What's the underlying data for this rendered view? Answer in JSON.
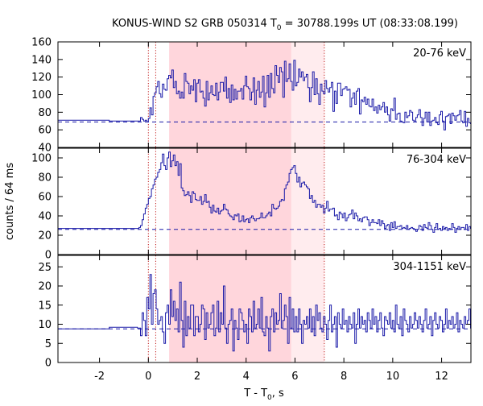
{
  "chart_data": {
    "type": "line",
    "title": {
      "prefix": "KONUS-WIND S2 GRB 050314 T",
      "sub": "0",
      "suffix": " = 30788.199s UT (08:33:08.199)"
    },
    "xlabel": {
      "prefix": "T - T",
      "sub": "0",
      "suffix": ", s"
    },
    "ylabel": "counts / 64 ms",
    "xlim": [
      -3.7,
      13.2
    ],
    "x_ticks": [
      -2,
      0,
      2,
      4,
      6,
      8,
      10,
      12
    ],
    "x_tick_labels": [
      "-2",
      "0",
      "2",
      "4",
      "6",
      "8",
      "10",
      "12"
    ],
    "colors": {
      "series": "#1a1aa8",
      "background_line": "#1a1aa8",
      "shade_main": "#ffd6dc",
      "shade_extension": "#ffecee",
      "marker_lines": "#c01818",
      "frame": "#000000"
    },
    "intervals": {
      "main_shade": [
        0.85,
        5.85
      ],
      "extended_shade": [
        5.85,
        7.2
      ],
      "dotted_markers": [
        0.0,
        0.3,
        7.2
      ]
    },
    "panels": [
      {
        "name": "20-76 keV",
        "ylim": [
          40,
          160
        ],
        "y_ticks": [
          40,
          60,
          80,
          100,
          120,
          140,
          160
        ],
        "y_tick_labels": [
          "40",
          "60",
          "80",
          "100",
          "120",
          "140",
          "160"
        ],
        "background": 69,
        "pre_trigger_levels": [
          [
            -3.7,
            71
          ],
          [
            -1.6,
            70
          ]
        ],
        "series": {
          "t_start": -0.45,
          "dt": 0.064,
          "values": [
            70,
            70,
            74,
            72,
            70,
            71,
            69,
            73,
            85,
            77,
            98,
            102,
            109,
            115,
            101,
            97,
            112,
            106,
            105,
            118,
            122,
            119,
            128,
            108,
            115,
            101,
            104,
            96,
            103,
            96,
            124,
            115,
            113,
            101,
            110,
            105,
            117,
            92,
            113,
            117,
            103,
            104,
            96,
            87,
            115,
            94,
            102,
            110,
            100,
            99,
            113,
            94,
            103,
            114,
            114,
            104,
            120,
            96,
            107,
            91,
            111,
            94,
            106,
            95,
            104,
            104,
            107,
            95,
            110,
            121,
            109,
            107,
            94,
            103,
            119,
            89,
            105,
            115,
            97,
            103,
            121,
            86,
            102,
            122,
            97,
            124,
            107,
            102,
            133,
            122,
            114,
            131,
            126,
            97,
            138,
            115,
            118,
            135,
            115,
            105,
            139,
            110,
            114,
            129,
            120,
            126,
            116,
            120,
            123,
            108,
            92,
            108,
            126,
            100,
            118,
            101,
            89,
            112,
            104,
            101,
            116,
            107,
            103,
            108,
            114,
            81,
            104,
            90,
            113,
            113,
            99,
            106,
            107,
            109,
            105,
            106,
            86,
            96,
            102,
            89,
            104,
            107,
            78,
            94,
            92,
            97,
            89,
            95,
            87,
            86,
            95,
            82,
            86,
            79,
            88,
            83,
            86,
            91,
            80,
            86,
            77,
            70,
            84,
            82,
            96,
            72,
            78,
            79,
            70,
            69,
            68,
            80,
            74,
            76,
            82,
            80,
            71,
            69,
            74,
            77,
            83,
            74,
            65,
            73,
            80,
            69,
            80,
            65,
            70,
            71,
            74,
            68,
            66,
            77,
            81,
            70,
            60,
            75,
            76,
            78,
            67,
            79,
            76,
            71,
            76,
            77,
            82,
            70,
            68,
            81,
            64,
            73,
            68,
            67,
            74,
            70,
            64,
            78,
            72,
            70,
            72,
            65,
            75,
            68,
            84,
            68,
            73,
            62,
            75,
            64,
            85,
            64,
            69,
            70,
            70,
            79,
            85,
            67,
            69,
            75,
            70
          ]
        }
      },
      {
        "name": "76-304 keV",
        "ylim": [
          0,
          110
        ],
        "y_ticks": [
          0,
          20,
          40,
          60,
          80,
          100
        ],
        "y_tick_labels": [
          "0",
          "20",
          "40",
          "60",
          "80",
          "100"
        ],
        "background": 26,
        "pre_trigger_levels": [
          [
            -3.7,
            27
          ],
          [
            -1.6,
            27
          ]
        ],
        "series": {
          "t_start": -0.45,
          "dt": 0.064,
          "values": [
            27,
            28,
            30,
            36,
            42,
            48,
            52,
            58,
            60,
            68,
            72,
            78,
            80,
            85,
            88,
            95,
            104,
            92,
            88,
            100,
            106,
            91,
            97,
            103,
            92,
            96,
            82,
            94,
            69,
            66,
            61,
            62,
            65,
            61,
            54,
            65,
            63,
            57,
            56,
            56,
            60,
            52,
            55,
            62,
            54,
            55,
            49,
            43,
            51,
            45,
            44,
            48,
            42,
            45,
            46,
            52,
            47,
            46,
            42,
            40,
            39,
            36,
            41,
            40,
            42,
            34,
            35,
            40,
            34,
            36,
            37,
            33,
            38,
            40,
            37,
            35,
            37,
            37,
            38,
            43,
            38,
            38,
            40,
            42,
            44,
            40,
            52,
            48,
            47,
            48,
            50,
            55,
            57,
            56,
            68,
            72,
            75,
            84,
            88,
            90,
            92,
            84,
            75,
            80,
            70,
            74,
            75,
            72,
            70,
            68,
            58,
            61,
            54,
            56,
            49,
            52,
            52,
            49,
            51,
            43,
            48,
            55,
            45,
            47,
            47,
            48,
            40,
            41,
            36,
            44,
            42,
            38,
            43,
            35,
            38,
            41,
            42,
            46,
            37,
            43,
            40,
            35,
            37,
            34,
            38,
            39,
            39,
            36,
            30,
            33,
            36,
            33,
            33,
            32,
            36,
            30,
            35,
            32,
            27,
            30,
            31,
            25,
            33,
            28,
            34,
            27,
            29,
            29,
            30,
            27,
            28,
            27,
            30,
            26,
            27,
            28,
            27,
            26,
            24,
            26,
            30,
            29,
            25,
            31,
            28,
            27,
            33,
            30,
            26,
            23,
            28,
            32,
            26,
            27,
            25,
            29,
            27,
            28,
            25,
            27,
            26,
            32,
            28,
            23,
            27,
            29,
            26,
            28,
            28,
            26,
            31,
            25,
            29,
            27,
            26,
            28,
            24,
            30,
            27,
            25,
            27,
            26,
            29,
            22,
            28,
            26,
            27,
            34,
            28,
            25,
            30,
            26,
            31,
            25,
            29,
            24,
            27,
            30,
            21,
            22,
            26,
            33,
            31,
            29,
            27,
            22
          ]
        }
      },
      {
        "name": "304-1151 keV",
        "ylim": [
          0,
          28
        ],
        "y_ticks": [
          0,
          5,
          10,
          15,
          20,
          25
        ],
        "y_tick_labels": [
          "0",
          "5",
          "10",
          "15",
          "20",
          "25"
        ],
        "background": 8.8,
        "pre_trigger_levels": [
          [
            -3.7,
            8.8
          ],
          [
            -1.6,
            9.2
          ]
        ],
        "series": {
          "t_start": -0.45,
          "dt": 0.064,
          "values": [
            9,
            9,
            7,
            13,
            11,
            7,
            17,
            14,
            23,
            10,
            18,
            19,
            14,
            10,
            11,
            12,
            8,
            5,
            13,
            15,
            10,
            19,
            12,
            16,
            11,
            14,
            8,
            21,
            11,
            4,
            16,
            7,
            12,
            9,
            15,
            15,
            7,
            12,
            12,
            8,
            10,
            15,
            14,
            6,
            13,
            9,
            10,
            13,
            15,
            7,
            9,
            16,
            8,
            13,
            10,
            20,
            9,
            5,
            10,
            11,
            14,
            3,
            11,
            9,
            6,
            14,
            13,
            11,
            8,
            10,
            5,
            14,
            12,
            8,
            16,
            9,
            10,
            14,
            9,
            17,
            8,
            7,
            12,
            9,
            3,
            12,
            14,
            8,
            13,
            10,
            11,
            18,
            9,
            11,
            15,
            12,
            5,
            17,
            9,
            14,
            8,
            12,
            8,
            14,
            10,
            5,
            11,
            10,
            12,
            9,
            14,
            8,
            12,
            7,
            15,
            11,
            13,
            9,
            8,
            12,
            10,
            6,
            11,
            15,
            8,
            10,
            12,
            4,
            13,
            10,
            9,
            14,
            10,
            11,
            8,
            12,
            10,
            9,
            13,
            5,
            10,
            14,
            9,
            12,
            10,
            11,
            8,
            13,
            11,
            9,
            14,
            10,
            12,
            8,
            11,
            13,
            9,
            7,
            12,
            11,
            10,
            13,
            9,
            11,
            8,
            15,
            10,
            9,
            12,
            7,
            14,
            11,
            10,
            8,
            12,
            9,
            10,
            13,
            11,
            9,
            12,
            10,
            8,
            11,
            14,
            9,
            10,
            12,
            7,
            11,
            13,
            10,
            9,
            12,
            11,
            8,
            10,
            14,
            9,
            11,
            10,
            12,
            9,
            10,
            13,
            8,
            11,
            10,
            9,
            12,
            10,
            11,
            14,
            9,
            10,
            12,
            8,
            11,
            13,
            9,
            10,
            11,
            12,
            10,
            9,
            13,
            10,
            11,
            6,
            12,
            10,
            9,
            11,
            14,
            10,
            9,
            12,
            11,
            10,
            4,
            8
          ]
        }
      }
    ]
  }
}
